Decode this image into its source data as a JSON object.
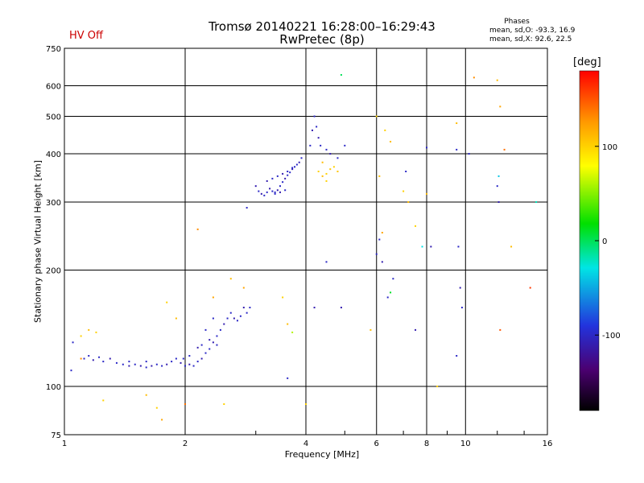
{
  "chart_data": {
    "type": "scatter",
    "title_line1": "Tromsø 20140221 16:28:00–16:29:43",
    "title_line2": "RwPretec (8p)",
    "status": "HV Off",
    "phases": {
      "title": "Phases",
      "line1": "mean, sd,O: -93.3, 16.9",
      "line2": "mean, sd,X:  92.6, 22.5"
    },
    "xlabel": "Frequency [MHz]",
    "ylabel": "Stationary phase Virtual Height [km]",
    "x_scale": "log",
    "y_scale": "log",
    "xlim": [
      1,
      16
    ],
    "ylim": [
      75,
      750
    ],
    "x_ticks": [
      1,
      2,
      4,
      6,
      8,
      10,
      16
    ],
    "x_tick_labels": [
      "1",
      "2",
      "4",
      "6",
      "8",
      "10",
      "16"
    ],
    "y_ticks": [
      75,
      100,
      200,
      300,
      400,
      500,
      600,
      750
    ],
    "y_tick_labels": [
      "75",
      "100",
      "200",
      "300",
      "400",
      "500",
      "600",
      "750"
    ],
    "grid": true,
    "colorbar": {
      "label": "[deg]",
      "range": [
        -180,
        180
      ],
      "ticks": [
        100,
        0,
        -100
      ],
      "tick_labels": [
        "100",
        "0",
        "-100"
      ]
    },
    "points": [
      [
        1.12,
        118,
        -100
      ],
      [
        1.15,
        120,
        -100
      ],
      [
        1.18,
        117,
        -110
      ],
      [
        1.22,
        119,
        -100
      ],
      [
        1.25,
        116,
        -100
      ],
      [
        1.3,
        118,
        -110
      ],
      [
        1.35,
        115,
        -100
      ],
      [
        1.4,
        114,
        -100
      ],
      [
        1.45,
        113,
        -110
      ],
      [
        1.5,
        114,
        -100
      ],
      [
        1.55,
        113,
        -110
      ],
      [
        1.6,
        112,
        -100
      ],
      [
        1.65,
        113,
        -110
      ],
      [
        1.7,
        114,
        -100
      ],
      [
        1.75,
        113,
        -100
      ],
      [
        1.8,
        114,
        -110
      ],
      [
        1.85,
        116,
        -100
      ],
      [
        1.9,
        118,
        -100
      ],
      [
        1.95,
        115,
        -110
      ],
      [
        2.0,
        113,
        -100
      ],
      [
        2.05,
        114,
        -110
      ],
      [
        2.1,
        113,
        -100
      ],
      [
        2.15,
        116,
        -100
      ],
      [
        2.2,
        118,
        -110
      ],
      [
        2.25,
        122,
        -100
      ],
      [
        2.3,
        125,
        -100
      ],
      [
        2.35,
        130,
        -110
      ],
      [
        2.4,
        135,
        -100
      ],
      [
        2.45,
        140,
        -100
      ],
      [
        2.5,
        145,
        -110
      ],
      [
        2.55,
        150,
        -100
      ],
      [
        2.6,
        155,
        -100
      ],
      [
        2.65,
        150,
        -110
      ],
      [
        2.7,
        148,
        -100
      ],
      [
        2.75,
        152,
        -100
      ],
      [
        2.8,
        160,
        -110
      ],
      [
        2.85,
        155,
        -100
      ],
      [
        2.9,
        160,
        -100
      ],
      [
        2.2,
        128,
        -100
      ],
      [
        2.25,
        140,
        -100
      ],
      [
        2.3,
        132,
        -110
      ],
      [
        2.35,
        150,
        -100
      ],
      [
        2.4,
        128,
        -100
      ],
      [
        2.15,
        126,
        -110
      ],
      [
        1.98,
        118,
        -100
      ],
      [
        1.45,
        116,
        -100
      ],
      [
        1.6,
        116,
        -100
      ],
      [
        2.05,
        120,
        -100
      ],
      [
        3.0,
        330,
        -110
      ],
      [
        3.05,
        320,
        -100
      ],
      [
        3.1,
        315,
        -110
      ],
      [
        3.15,
        312,
        -100
      ],
      [
        3.2,
        318,
        -100
      ],
      [
        3.25,
        325,
        -110
      ],
      [
        3.3,
        320,
        -100
      ],
      [
        3.35,
        318,
        -100
      ],
      [
        3.4,
        322,
        -110
      ],
      [
        3.45,
        330,
        -100
      ],
      [
        3.5,
        338,
        -100
      ],
      [
        3.55,
        345,
        -110
      ],
      [
        3.6,
        352,
        -100
      ],
      [
        3.65,
        358,
        -100
      ],
      [
        3.7,
        365,
        -110
      ],
      [
        3.75,
        370,
        -100
      ],
      [
        3.8,
        375,
        -100
      ],
      [
        3.2,
        340,
        -110
      ],
      [
        3.3,
        345,
        -100
      ],
      [
        3.4,
        350,
        -100
      ],
      [
        3.5,
        355,
        -110
      ],
      [
        3.6,
        360,
        -100
      ],
      [
        3.7,
        368,
        -100
      ],
      [
        3.85,
        380,
        -110
      ],
      [
        3.9,
        390,
        -100
      ],
      [
        4.1,
        420,
        -100
      ],
      [
        4.15,
        460,
        -110
      ],
      [
        4.2,
        500,
        -100
      ],
      [
        4.25,
        470,
        -100
      ],
      [
        4.3,
        440,
        -110
      ],
      [
        4.35,
        420,
        -100
      ],
      [
        4.5,
        410,
        -100
      ],
      [
        4.6,
        400,
        -110
      ],
      [
        4.8,
        390,
        -100
      ],
      [
        5.0,
        420,
        -100
      ],
      [
        3.35,
        315,
        -100
      ],
      [
        3.45,
        318,
        -110
      ],
      [
        3.55,
        322,
        -100
      ],
      [
        4.3,
        360,
        100
      ],
      [
        4.4,
        350,
        110
      ],
      [
        4.5,
        355,
        100
      ],
      [
        4.6,
        365,
        105
      ],
      [
        4.7,
        370,
        100
      ],
      [
        4.4,
        380,
        110
      ],
      [
        4.5,
        340,
        100
      ],
      [
        4.8,
        360,
        105
      ],
      [
        1.05,
        130,
        -100
      ],
      [
        1.1,
        118,
        130
      ],
      [
        1.1,
        135,
        100
      ],
      [
        1.15,
        140,
        110
      ],
      [
        1.2,
        138,
        100
      ],
      [
        1.25,
        92,
        100
      ],
      [
        1.6,
        95,
        110
      ],
      [
        1.7,
        88,
        100
      ],
      [
        1.75,
        82,
        120
      ],
      [
        1.8,
        165,
        100
      ],
      [
        1.9,
        150,
        110
      ],
      [
        2.0,
        90,
        140
      ],
      [
        2.15,
        255,
        130
      ],
      [
        2.35,
        170,
        120
      ],
      [
        2.5,
        90,
        100
      ],
      [
        2.6,
        190,
        110
      ],
      [
        2.8,
        180,
        120
      ],
      [
        3.5,
        170,
        100
      ],
      [
        3.6,
        145,
        110
      ],
      [
        3.7,
        138,
        60
      ],
      [
        4.0,
        90,
        100
      ],
      [
        4.9,
        640,
        0
      ],
      [
        5.8,
        140,
        110
      ],
      [
        6.0,
        500,
        100
      ],
      [
        6.1,
        350,
        110
      ],
      [
        6.2,
        250,
        120
      ],
      [
        6.3,
        460,
        100
      ],
      [
        6.5,
        430,
        110
      ],
      [
        7.0,
        320,
        100
      ],
      [
        7.2,
        300,
        110
      ],
      [
        7.5,
        260,
        100
      ],
      [
        8.0,
        315,
        110
      ],
      [
        8.5,
        100,
        100
      ],
      [
        9.5,
        480,
        110
      ],
      [
        10.5,
        630,
        130
      ],
      [
        12.0,
        620,
        110
      ],
      [
        12.2,
        530,
        120
      ],
      [
        12.5,
        410,
        140
      ],
      [
        13.0,
        230,
        110
      ],
      [
        14.5,
        180,
        160
      ],
      [
        6.0,
        220,
        -100
      ],
      [
        6.1,
        240,
        -100
      ],
      [
        6.2,
        210,
        -110
      ],
      [
        6.4,
        170,
        -100
      ],
      [
        6.6,
        190,
        -100
      ],
      [
        7.1,
        360,
        -100
      ],
      [
        7.5,
        140,
        -110
      ],
      [
        8.0,
        415,
        -100
      ],
      [
        8.2,
        230,
        -110
      ],
      [
        9.5,
        410,
        -100
      ],
      [
        9.6,
        230,
        -100
      ],
      [
        9.7,
        180,
        -110
      ],
      [
        9.8,
        160,
        -100
      ],
      [
        12.0,
        330,
        -100
      ],
      [
        12.1,
        300,
        -110
      ],
      [
        10.2,
        400,
        -100
      ],
      [
        3.6,
        105,
        -100
      ],
      [
        4.5,
        210,
        -100
      ],
      [
        4.2,
        160,
        -110
      ],
      [
        2.85,
        290,
        -100
      ],
      [
        1.04,
        110,
        -100
      ],
      [
        9.5,
        120,
        -100
      ],
      [
        6.5,
        175,
        10
      ],
      [
        7.8,
        230,
        -30
      ],
      [
        12.1,
        350,
        -40
      ],
      [
        15.0,
        300,
        -20
      ],
      [
        4.9,
        160,
        -110
      ],
      [
        12.2,
        140,
        150
      ]
    ]
  }
}
